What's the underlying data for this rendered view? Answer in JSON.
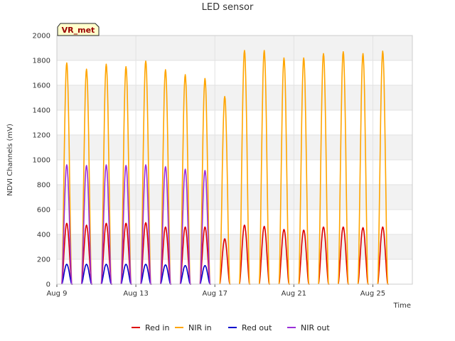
{
  "chart_data": {
    "type": "line",
    "title": "LED sensor",
    "xlabel": "Time",
    "ylabel": "NDVI Channels (mV)",
    "site_label": "VR_met",
    "ylim": [
      0,
      2000
    ],
    "xlim": [
      "2023-08-09",
      "2023-08-27"
    ],
    "yticks": [
      0,
      200,
      400,
      600,
      800,
      1000,
      1200,
      1400,
      1600,
      1800,
      2000
    ],
    "xticks": [
      {
        "date": "2023-08-09",
        "label": "Aug 9"
      },
      {
        "date": "2023-08-13",
        "label": "Aug 13"
      },
      {
        "date": "2023-08-17",
        "label": "Aug 17"
      },
      {
        "date": "2023-08-21",
        "label": "Aug 21"
      },
      {
        "date": "2023-08-25",
        "label": "Aug 25"
      }
    ],
    "grid": true,
    "legend_position": "bottom",
    "days": [
      "2023-08-09",
      "2023-08-10",
      "2023-08-11",
      "2023-08-12",
      "2023-08-13",
      "2023-08-14",
      "2023-08-15",
      "2023-08-16",
      "2023-08-17",
      "2023-08-18",
      "2023-08-19",
      "2023-08-20",
      "2023-08-21",
      "2023-08-22",
      "2023-08-23",
      "2023-08-24",
      "2023-08-25"
    ],
    "series": [
      {
        "name": "Red in",
        "color": "#dd0000",
        "daily_peaks": [
          490,
          475,
          490,
          490,
          495,
          460,
          460,
          460,
          365,
          475,
          465,
          440,
          435,
          460,
          460,
          455,
          460
        ]
      },
      {
        "name": "NIR in",
        "color": "#ffa500",
        "daily_peaks": [
          1780,
          1730,
          1770,
          1750,
          1795,
          1725,
          1685,
          1655,
          1510,
          1880,
          1880,
          1820,
          1820,
          1855,
          1870,
          1855,
          1875
        ]
      },
      {
        "name": "Red out",
        "color": "#0000cc",
        "daily_peaks": [
          160,
          160,
          160,
          160,
          160,
          155,
          150,
          150,
          null,
          null,
          null,
          null,
          null,
          null,
          null,
          null,
          null
        ]
      },
      {
        "name": "NIR out",
        "color": "#9b30d9",
        "daily_peaks": [
          960,
          955,
          960,
          955,
          960,
          945,
          925,
          915,
          null,
          null,
          null,
          null,
          null,
          null,
          null,
          null,
          null
        ]
      }
    ]
  }
}
